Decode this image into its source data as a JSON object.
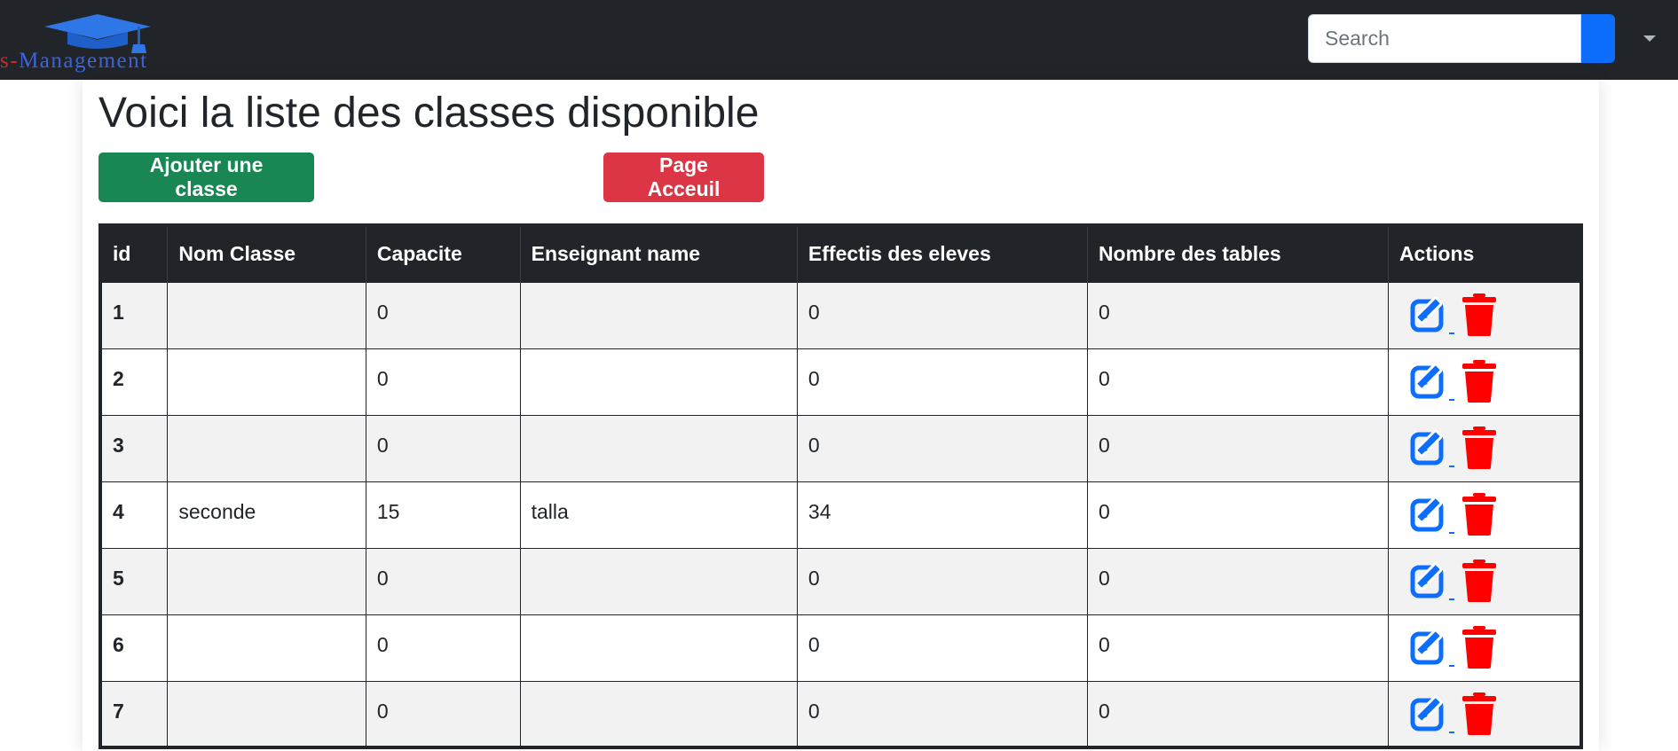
{
  "navbar": {
    "brand_prefix": "s-",
    "brand_name": "Management",
    "search_placeholder": "Search",
    "colors": {
      "background": "#212529",
      "search_button": "#0d6efd"
    }
  },
  "page": {
    "title": "Voici la liste des classes disponible",
    "add_button": "Ajouter une classe",
    "home_button": "Page Acceuil"
  },
  "table": {
    "headers": [
      "id",
      "Nom Classe",
      "Capacite",
      "Enseignant name",
      "Effectis des eleves",
      "Nombre des tables",
      "Actions"
    ],
    "rows": [
      {
        "id": "1",
        "nom": "",
        "capacite": "0",
        "enseignant": "",
        "effectif": "0",
        "tables": "0"
      },
      {
        "id": "2",
        "nom": "",
        "capacite": "0",
        "enseignant": "",
        "effectif": "0",
        "tables": "0"
      },
      {
        "id": "3",
        "nom": "",
        "capacite": "0",
        "enseignant": "",
        "effectif": "0",
        "tables": "0"
      },
      {
        "id": "4",
        "nom": "seconde",
        "capacite": "15",
        "enseignant": "talla",
        "effectif": "34",
        "tables": "0"
      },
      {
        "id": "5",
        "nom": "",
        "capacite": "0",
        "enseignant": "",
        "effectif": "0",
        "tables": "0"
      },
      {
        "id": "6",
        "nom": "",
        "capacite": "0",
        "enseignant": "",
        "effectif": "0",
        "tables": "0"
      },
      {
        "id": "7",
        "nom": "",
        "capacite": "0",
        "enseignant": "",
        "effectif": "0",
        "tables": "0"
      }
    ],
    "action_icons": [
      "edit-icon",
      "trash-icon"
    ],
    "colors": {
      "edit": "#0d6efd",
      "delete": "#ff0000",
      "success": "#198754",
      "danger": "#dc3545"
    }
  }
}
